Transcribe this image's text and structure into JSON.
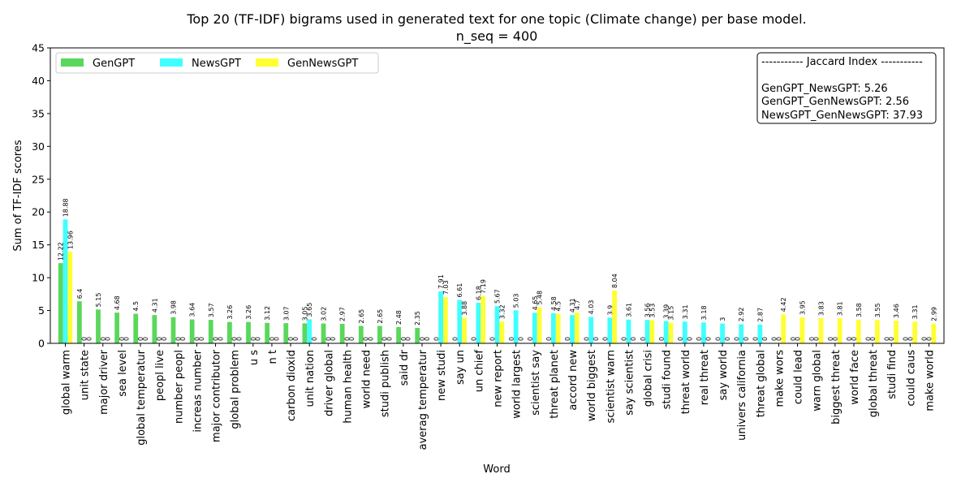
{
  "chart_data": {
    "type": "bar",
    "title": "Top 20 (TF-IDF) bigrams used in generated text for one topic (Climate change) per base model.",
    "subtitle": "n_seq = 400",
    "xlabel": "Word",
    "ylabel": "Sum of TF-IDF scores",
    "ylim": [
      0,
      45
    ],
    "yticks": [
      0,
      5,
      10,
      15,
      20,
      25,
      30,
      35,
      40,
      45
    ],
    "legend_position": "top-left",
    "categories": [
      "global warm",
      "unit state",
      "major driver",
      "sea level",
      "global temperatur",
      "peopl live",
      "number peopl",
      "increas number",
      "major contributor",
      "global problem",
      "u s",
      "n t",
      "carbon dioxid",
      "unit nation",
      "driver global",
      "human health",
      "world need",
      "studi publish",
      "said dr",
      "averag temperatur",
      "new studi",
      "say un",
      "un chief",
      "new report",
      "world largest",
      "scientist say",
      "threat planet",
      "accord new",
      "world biggest",
      "scientist warn",
      "say scientist",
      "global crisi",
      "studi found",
      "threat world",
      "real threat",
      "say world",
      "univers california",
      "threat global",
      "make wors",
      "could lead",
      "warn global",
      "biggest threat",
      "world face",
      "global threat",
      "studi find",
      "could caus",
      "make world"
    ],
    "series": [
      {
        "name": "GenGPT",
        "color": "#5bd75b",
        "values": [
          12.22,
          6.4,
          5.15,
          4.68,
          4.5,
          4.31,
          3.98,
          3.64,
          3.57,
          3.26,
          3.26,
          3.12,
          3.07,
          3.05,
          3.02,
          2.97,
          2.65,
          2.65,
          2.48,
          2.35,
          0,
          0,
          0,
          0,
          0,
          0,
          0,
          0,
          0,
          0,
          0,
          0,
          0,
          0,
          0,
          0,
          0,
          0,
          0,
          0,
          0,
          0,
          0,
          0,
          0,
          0,
          0
        ]
      },
      {
        "name": "NewsGPT",
        "color": "#3fffff",
        "values": [
          18.88,
          0,
          0,
          0,
          0,
          0,
          0,
          0,
          0,
          0,
          0,
          0,
          0,
          3.65,
          0,
          0,
          0,
          0,
          0,
          0,
          7.91,
          6.61,
          6.18,
          5.67,
          5.03,
          4.65,
          4.58,
          4.31,
          4.03,
          3.9,
          3.61,
          3.56,
          3.39,
          3.31,
          3.18,
          3,
          2.92,
          2.87,
          0,
          0,
          0,
          0,
          0,
          0,
          0,
          0,
          0
        ]
      },
      {
        "name": "GenNewsGPT",
        "color": "#ffff33",
        "values": [
          13.96,
          0,
          0,
          0,
          0,
          0,
          0,
          0,
          0,
          0,
          0,
          0,
          0,
          0,
          0,
          0,
          0,
          0,
          0,
          0,
          7.03,
          3.88,
          7.19,
          3.32,
          0,
          5.48,
          4.5,
          4.7,
          0,
          8.04,
          0,
          3.53,
          3.15,
          0,
          0,
          0,
          0,
          0,
          4.42,
          3.95,
          3.83,
          3.81,
          3.58,
          3.55,
          3.46,
          3.31,
          2.99
        ]
      }
    ]
  },
  "jaccard": {
    "header": "----------- Jaccard Index -----------",
    "lines": [
      "GenGPT_NewsGPT: 5.26",
      "GenGPT_GenNewsGPT: 2.56",
      "NewsGPT_GenNewsGPT: 37.93"
    ]
  }
}
